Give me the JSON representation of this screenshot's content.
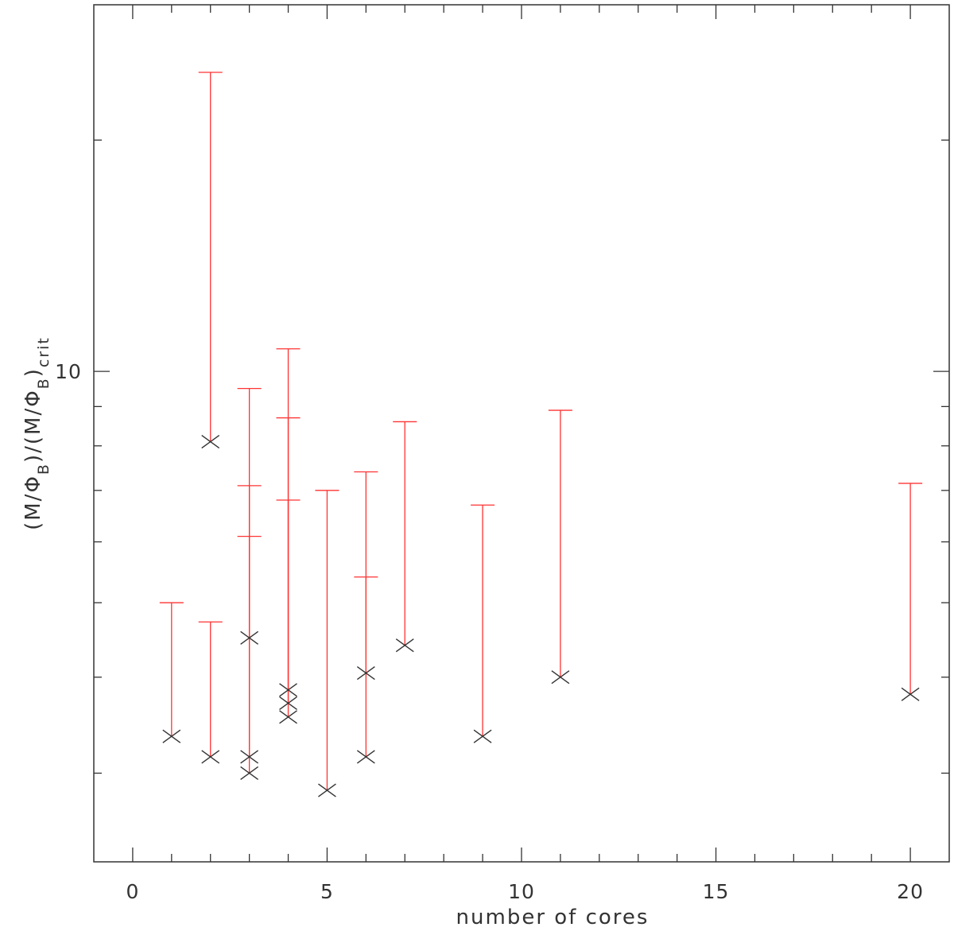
{
  "chart_data": {
    "type": "scatter",
    "xlabel": "number of cores",
    "ylabel": {
      "parts": [
        "(M/Φ",
        "B",
        ")/(M/Φ",
        "B",
        ")",
        "crit"
      ]
    },
    "xlim": [
      -1,
      21
    ],
    "ylim": [
      2.3,
      30.0
    ],
    "yscale": "log",
    "x_ticks": [
      0,
      5,
      10,
      15,
      20
    ],
    "y_major_ticks": [
      10
    ],
    "y_minor_ticks": [
      3,
      4,
      5,
      6,
      7,
      8,
      9,
      20
    ],
    "grid": false,
    "colors": {
      "error_bar": "#ff3333",
      "marker": "#333333",
      "axes": "#333333"
    },
    "series": [
      {
        "marker": "x",
        "points": [
          {
            "x": 1,
            "y": 3.35,
            "y_upper": 5.0
          },
          {
            "x": 2,
            "y": 8.1,
            "y_upper": 24.5
          },
          {
            "x": 2,
            "y": 3.15,
            "y_upper": 4.72
          },
          {
            "x": 3,
            "y": 4.5,
            "y_upper": 9.5
          },
          {
            "x": 3,
            "y": 3.15,
            "y_upper": 7.1
          },
          {
            "x": 3,
            "y": 3.0,
            "y_upper": 6.1
          },
          {
            "x": 4,
            "y": 3.85,
            "y_upper": 10.7
          },
          {
            "x": 4,
            "y": 3.7,
            "y_upper": 8.7
          },
          {
            "x": 4,
            "y": 3.55,
            "y_upper": 6.8
          },
          {
            "x": 5,
            "y": 2.85,
            "y_upper": 7.0
          },
          {
            "x": 6,
            "y": 4.05,
            "y_upper": 7.4
          },
          {
            "x": 6,
            "y": 3.15,
            "y_upper": 5.4
          },
          {
            "x": 7,
            "y": 4.4,
            "y_upper": 8.6
          },
          {
            "x": 9,
            "y": 3.35,
            "y_upper": 6.7
          },
          {
            "x": 11,
            "y": 4.0,
            "y_upper": 8.9
          },
          {
            "x": 20,
            "y": 3.8,
            "y_upper": 7.15
          }
        ]
      }
    ]
  }
}
